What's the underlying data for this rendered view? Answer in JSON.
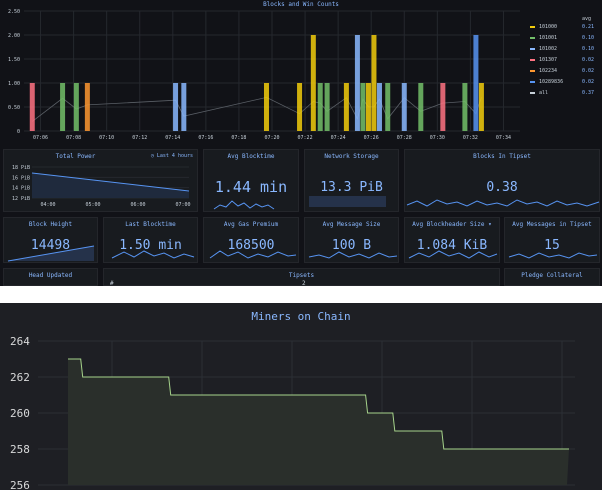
{
  "dashboard": {
    "blocks_panel": {
      "title": "Blocks and Win Counts",
      "y_ticks": [
        "2.50",
        "2.00",
        "1.50",
        "1.00",
        "0.50",
        "0"
      ],
      "x_ticks": [
        "07:06",
        "07:08",
        "07:10",
        "07:12",
        "07:14",
        "07:16",
        "07:18",
        "07:20",
        "07:22",
        "07:24",
        "07:26",
        "07:28",
        "07:30",
        "07:32",
        "07:34"
      ],
      "legend_header": "avg",
      "legend": [
        {
          "name": "101000",
          "value": "0.21",
          "color": "#f2cc0c"
        },
        {
          "name": "101001",
          "value": "0.10",
          "color": "#73bf69"
        },
        {
          "name": "101002",
          "value": "0.10",
          "color": "#8ab8ff"
        },
        {
          "name": "101307",
          "value": "0.02",
          "color": "#ff7383"
        },
        {
          "name": "102234",
          "value": "0.02",
          "color": "#ff9830"
        },
        {
          "name": "10289836",
          "value": "0.02",
          "color": "#5794f2"
        },
        {
          "name": "all",
          "value": "0.37",
          "color": "#c7d0d9"
        }
      ]
    },
    "total_power": {
      "title": "Total Power",
      "range_label": "Last 4 hours",
      "y_ticks": [
        "18 PiB",
        "16 PiB",
        "14 PiB",
        "12 PiB"
      ],
      "x_ticks": [
        "04:00",
        "05:00",
        "06:00",
        "07:00"
      ]
    },
    "avg_blocktime": {
      "title": "Avg Blocktime",
      "value": "1.44 min"
    },
    "network_storage": {
      "title": "Network Storage",
      "value": "13.3 PiB"
    },
    "blocks_in_tipset": {
      "title": "Blocks In Tipset",
      "value": "0.38"
    },
    "block_height": {
      "title": "Block Height",
      "value": "14498"
    },
    "last_blocktime": {
      "title": "Last Blocktime",
      "value": "1.50 min"
    },
    "avg_gas_premium": {
      "title": "Avg Gas Premium",
      "value": "168500"
    },
    "avg_message_size": {
      "title": "Avg Message Size",
      "value": "100 B"
    },
    "avg_blockheader_size": {
      "title": "Avg Blockheader Size ▾",
      "value": "1.084 KiB"
    },
    "avg_messages_in_tipset": {
      "title": "Avg Messages in Tipset",
      "value": "15"
    },
    "head_updated": {
      "title": "Head Updated"
    },
    "tipsets": {
      "title": "Tipsets",
      "peek_left": "#",
      "peek_mid": "2"
    },
    "pledge_collateral": {
      "title": "Pledge Collateral"
    }
  },
  "miners_panel": {
    "title": "Miners on Chain",
    "y_ticks": [
      "264",
      "262",
      "260",
      "258",
      "256"
    ]
  },
  "chart_data": [
    {
      "type": "bar",
      "title": "Blocks and Win Counts",
      "ylim": [
        0,
        2.5
      ],
      "bars": [
        {
          "x": "07:05:30",
          "series": "101307",
          "value": 1
        },
        {
          "x": "07:07:20",
          "series": "101001",
          "value": 1
        },
        {
          "x": "07:08:10",
          "series": "101001",
          "value": 1
        },
        {
          "x": "07:08:50",
          "series": "102234",
          "value": 1
        },
        {
          "x": "07:14:10",
          "series": "101002",
          "value": 1
        },
        {
          "x": "07:14:40",
          "series": "101002",
          "value": 1
        },
        {
          "x": "07:19:40",
          "series": "101000",
          "value": 1
        },
        {
          "x": "07:21:40",
          "series": "101000",
          "value": 1
        },
        {
          "x": "07:22:30",
          "series": "101000",
          "value": 2
        },
        {
          "x": "07:22:55",
          "series": "101001",
          "value": 1
        },
        {
          "x": "07:23:20",
          "series": "101001",
          "value": 1
        },
        {
          "x": "07:24:30",
          "series": "101000",
          "value": 1
        },
        {
          "x": "07:25:10",
          "series": "101002",
          "value": 2
        },
        {
          "x": "07:25:30",
          "series": "101001",
          "value": 1
        },
        {
          "x": "07:25:50",
          "series": "101000",
          "value": 1
        },
        {
          "x": "07:26:10",
          "series": "101000",
          "value": 2
        },
        {
          "x": "07:26:30",
          "series": "101002",
          "value": 1
        },
        {
          "x": "07:27:00",
          "series": "101001",
          "value": 1
        },
        {
          "x": "07:28:00",
          "series": "101002",
          "value": 1
        },
        {
          "x": "07:29:00",
          "series": "101001",
          "value": 1
        },
        {
          "x": "07:30:20",
          "series": "101307",
          "value": 1
        },
        {
          "x": "07:31:40",
          "series": "101001",
          "value": 1
        },
        {
          "x": "07:32:20",
          "series": "10289836",
          "value": 2
        },
        {
          "x": "07:32:40",
          "series": "101000",
          "value": 1
        }
      ]
    },
    {
      "type": "area",
      "title": "Miners on Chain",
      "ylim": [
        256,
        264
      ],
      "steps": [
        {
          "t": 0,
          "y": 263
        },
        {
          "t": 1.4,
          "y": 262
        },
        {
          "t": 11.1,
          "y": 261
        },
        {
          "t": 32.8,
          "y": 260
        },
        {
          "t": 35.8,
          "y": 259
        },
        {
          "t": 41.2,
          "y": 258
        },
        {
          "t": 55,
          "y": 258
        }
      ]
    }
  ]
}
